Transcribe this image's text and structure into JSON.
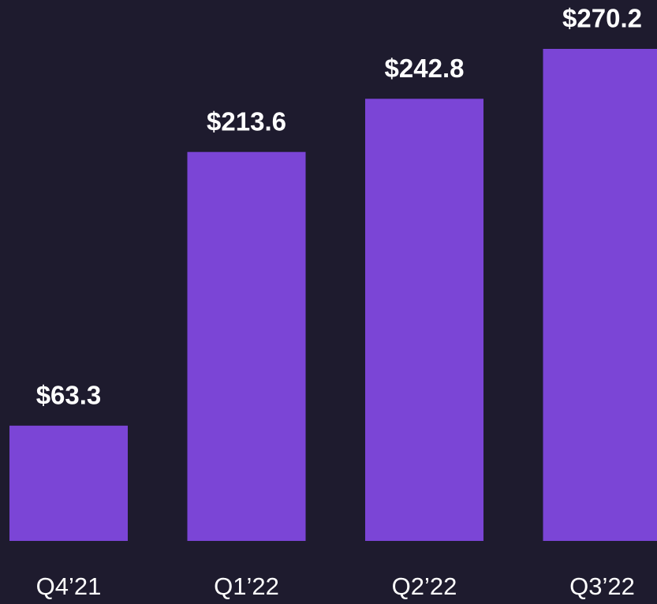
{
  "chart_data": {
    "type": "bar",
    "categories": [
      "Q4’21",
      "Q1’22",
      "Q2’22",
      "Q3’22"
    ],
    "values": [
      63.3,
      213.6,
      242.8,
      270.2
    ],
    "value_labels": [
      "$63.3",
      "$213.6",
      "$242.8",
      "$270.2"
    ],
    "color": "#7b45d6"
  }
}
